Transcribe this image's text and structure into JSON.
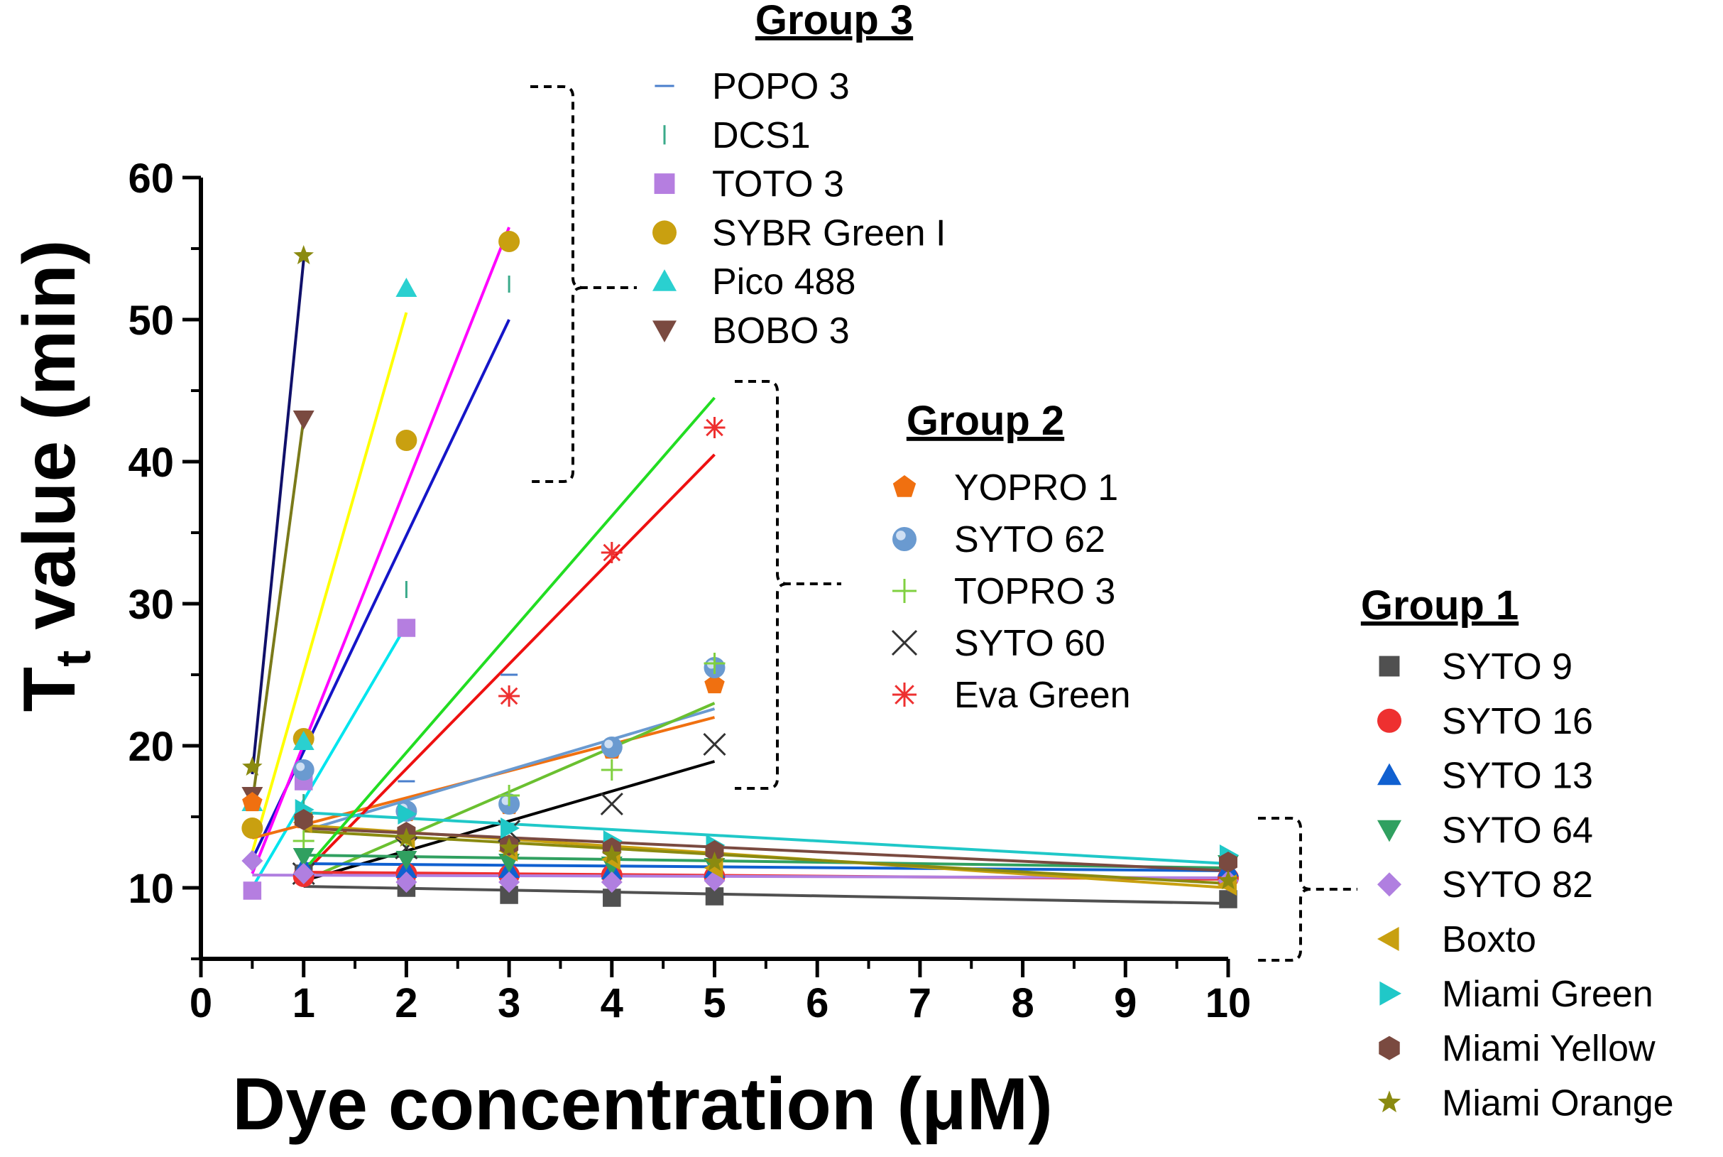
{
  "chart_data": {
    "type": "scatter",
    "title": "",
    "xlabel": "Dye concentration (μM)",
    "ylabel_main": "T",
    "ylabel_sub": "t",
    "ylabel_rest": " value (min)",
    "xlim": [
      0,
      10
    ],
    "ylim": [
      5,
      60
    ],
    "xticks": [
      0,
      1,
      2,
      3,
      4,
      5,
      6,
      7,
      8,
      9,
      10
    ],
    "yticks": [
      10,
      20,
      30,
      40,
      50,
      60
    ],
    "groups": [
      {
        "title": "Group 3",
        "series": [
          {
            "name": "POPO 3",
            "marker": "hline",
            "color": "#4a7fcc",
            "x": [
              0.5,
              1,
              2,
              3
            ],
            "y": [
              15.5,
              15,
              17.5,
              25
            ],
            "fit": {
              "x": [
                0.5,
                3
              ],
              "y": [
                12,
                50
              ],
              "color": "#1515c8"
            }
          },
          {
            "name": "DCS1",
            "marker": "vline",
            "color": "#3aaa8a",
            "x": [
              0.5,
              1,
              2,
              3
            ],
            "y": [
              12,
              16,
              31,
              52.5
            ],
            "fit": {
              "x": [
                0.5,
                3
              ],
              "y": [
                11,
                56.5
              ],
              "color": "#ff00ff"
            }
          },
          {
            "name": "TOTO 3",
            "marker": "square",
            "color": "#b57ee0",
            "x": [
              0.5,
              1,
              2
            ],
            "y": [
              9.8,
              17.5,
              28.3
            ],
            "fit": {
              "x": [
                0.5,
                2
              ],
              "y": [
                10,
                28.5
              ],
              "color": "#00e5ee"
            }
          },
          {
            "name": "SYBR Green I",
            "marker": "circle",
            "color": "#c9a010",
            "x": [
              0.5,
              1,
              2,
              3
            ],
            "y": [
              14.2,
              20.5,
              41.5,
              55.5
            ],
            "fit": {
              "x": [
                0.5,
                2
              ],
              "y": [
                12.5,
                50.5
              ],
              "color": "#ffff00"
            }
          },
          {
            "name": "Pico 488",
            "marker": "triangle-up",
            "color": "#2ad0d0",
            "x": [
              0.5,
              1,
              2
            ],
            "y": [
              16,
              20.3,
              52.2
            ],
            "fit": null
          },
          {
            "name": "BOBO 3",
            "marker": "triangle-down",
            "color": "#7a4a40",
            "x": [
              0.5,
              1
            ],
            "y": [
              16.5,
              43
            ],
            "fit": {
              "x": [
                0.5,
                1
              ],
              "y": [
                16,
                43
              ],
              "color": "#7a7a1a"
            }
          }
        ]
      },
      {
        "title": "Group 2",
        "series": [
          {
            "name": "YOPRO 1",
            "marker": "pentagon",
            "color": "#f07010",
            "x": [
              0.5,
              1,
              2,
              3,
              4,
              5
            ],
            "y": [
              16,
              14.8,
              15.3,
              15.8,
              19.7,
              24.3
            ],
            "fit": {
              "x": [
                0.5,
                5
              ],
              "y": [
                13.5,
                22
              ],
              "color": "#f07010"
            }
          },
          {
            "name": "SYTO 62",
            "marker": "sphere",
            "color": "#6a9ad0",
            "x": [
              1,
              2,
              3,
              4,
              5
            ],
            "y": [
              18.3,
              15.4,
              15.9,
              19.9,
              25.5
            ],
            "fit": {
              "x": [
                1,
                5
              ],
              "y": [
                14,
                22.6
              ],
              "color": "#6a9ad0"
            }
          },
          {
            "name": "TOPRO 3",
            "marker": "plus",
            "color": "#80d040",
            "x": [
              1,
              2,
              3,
              4,
              5
            ],
            "y": [
              13.3,
              13.5,
              16.5,
              18.3,
              25.8
            ],
            "fit": {
              "x": [
                1,
                5
              ],
              "y": [
                10.5,
                23
              ],
              "color": "#6ac030"
            }
          },
          {
            "name": "SYTO 60",
            "marker": "x",
            "color": "#333333",
            "x": [
              1,
              2,
              3,
              4,
              5
            ],
            "y": [
              11,
              12.8,
              14,
              15.9,
              20.1
            ],
            "fit": {
              "x": [
                1,
                5
              ],
              "y": [
                10.5,
                18.9
              ],
              "color": "#000000"
            }
          },
          {
            "name": "Eva Green",
            "marker": "asterisk",
            "color": "#ee3030",
            "x": [
              3,
              4,
              5
            ],
            "y": [
              23.5,
              33.6,
              42.4
            ],
            "fit": {
              "x": [
                1,
                5
              ],
              "y": [
                11,
                40.5
              ],
              "color": "#ee1010"
            }
          }
        ]
      },
      {
        "title": "Group 1",
        "series": [
          {
            "name": "SYTO 9",
            "marker": "square",
            "color": "#505050",
            "x": [
              1,
              2,
              3,
              4,
              5,
              10
            ],
            "y": [
              11,
              10,
              9.5,
              9.3,
              9.4,
              9.2
            ],
            "fit": {
              "x": [
                1,
                10
              ],
              "y": [
                10.1,
                8.9
              ],
              "color": "#505050"
            }
          },
          {
            "name": "SYTO 16",
            "marker": "circle",
            "color": "#ee3030",
            "x": [
              1,
              2,
              3,
              4,
              5,
              10
            ],
            "y": [
              10.8,
              11,
              10.9,
              10.9,
              10.8,
              10.7
            ],
            "fit": {
              "x": [
                1,
                10
              ],
              "y": [
                11.1,
                10.6
              ],
              "color": "#ee3030"
            }
          },
          {
            "name": "SYTO 13",
            "marker": "triangle-up",
            "color": "#1060d0",
            "x": [
              1,
              2,
              3,
              4,
              5,
              10
            ],
            "y": [
              11.5,
              11.3,
              11.3,
              11.2,
              11.3,
              11.4
            ],
            "fit": {
              "x": [
                1,
                10
              ],
              "y": [
                11.7,
                11.2
              ],
              "color": "#1060d0"
            }
          },
          {
            "name": "SYTO 64",
            "marker": "triangle-down",
            "color": "#30a060",
            "x": [
              1,
              2,
              3,
              4,
              5,
              10
            ],
            "y": [
              12.2,
              12,
              11.8,
              11.6,
              11.5,
              11.7
            ],
            "fit": {
              "x": [
                1,
                10
              ],
              "y": [
                12.3,
                11.4
              ],
              "color": "#30a060"
            }
          },
          {
            "name": "SYTO 82",
            "marker": "diamond",
            "color": "#b07fe0",
            "x": [
              0.5,
              1,
              2,
              3,
              4,
              5,
              10
            ],
            "y": [
              11.9,
              11,
              10.4,
              10.4,
              10.4,
              10.5,
              10.5
            ],
            "fit": {
              "x": [
                0.5,
                10
              ],
              "y": [
                10.9,
                10.7
              ],
              "color": "#b07fe0"
            }
          },
          {
            "name": "Boxto",
            "marker": "triangle-left",
            "color": "#c8a010",
            "x": [
              1,
              2,
              3,
              4,
              5,
              10
            ],
            "y": [
              14.6,
              13.5,
              12.6,
              12,
              11.4,
              10.2
            ],
            "fit": {
              "x": [
                1,
                10
              ],
              "y": [
                14.4,
                10
              ],
              "color": "#c8a010"
            }
          },
          {
            "name": "Miami Green",
            "marker": "triangle-right",
            "color": "#20c8c8",
            "x": [
              1,
              2,
              3,
              4,
              5,
              10
            ],
            "y": [
              15.5,
              15.2,
              14.2,
              13.3,
              13,
              12.3
            ],
            "fit": {
              "x": [
                1,
                10
              ],
              "y": [
                15.3,
                11.7
              ],
              "color": "#20c8c8"
            }
          },
          {
            "name": "Miami Yellow",
            "marker": "hexagon",
            "color": "#7a4a40",
            "x": [
              1,
              2,
              3,
              4,
              5,
              10
            ],
            "y": [
              14.8,
              13.9,
              13,
              12.8,
              12.6,
              11.8
            ],
            "fit": {
              "x": [
                1,
                10
              ],
              "y": [
                14.2,
                11.2
              ],
              "color": "#7a4a40"
            }
          },
          {
            "name": "Miami Orange",
            "marker": "star",
            "color": "#8a8a10",
            "x": [
              0.5,
              1,
              2,
              3,
              4,
              5,
              10
            ],
            "y": [
              18.5,
              54.5,
              13.5,
              12.8,
              12.3,
              11.8,
              10.5
            ],
            "fit": {
              "x": [
                1,
                10
              ],
              "y": [
                14,
                10.3
              ],
              "color": "#8a8a10"
            }
          }
        ]
      }
    ],
    "extra_fits": [
      {
        "x": [
          0.5,
          1
        ],
        "y": [
          18,
          54.2
        ],
        "color": "#10106a"
      },
      {
        "x": [
          1,
          5
        ],
        "y": [
          11.2,
          44.5
        ],
        "color": "#22dd22"
      }
    ]
  }
}
